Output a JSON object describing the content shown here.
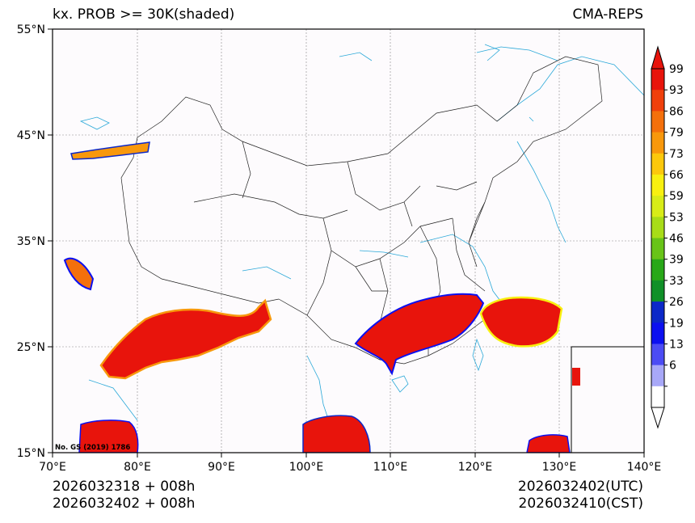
{
  "header": {
    "title": "kx. PROB >= 30K(shaded)",
    "model": "CMA-REPS"
  },
  "footer": {
    "init_utc": "2026032318  +  008h",
    "init_cst": "2026032402  +  008h",
    "valid_utc": "2026032402(UTC)",
    "valid_cst": "2026032410(CST)"
  },
  "map": {
    "lat_labels": [
      "55°N",
      "45°N",
      "35°N",
      "25°N",
      "15°N"
    ],
    "lon_labels": [
      "70°E",
      "80°E",
      "90°E",
      "100°E",
      "110°E",
      "120°E",
      "130°E",
      "140°E"
    ],
    "attribution": "No. GS (2019) 1786"
  },
  "colorbar": {
    "labels": [
      "99",
      "93",
      "86",
      "79",
      "73",
      "66",
      "59",
      "53",
      "46",
      "39",
      "33",
      "26",
      "19",
      "13",
      "6"
    ],
    "colors": [
      "#e8140c",
      "#f0400c",
      "#f4700c",
      "#f8980c",
      "#fcc80c",
      "#f8f010",
      "#d8ec18",
      "#a8dc18",
      "#68c418",
      "#28a818",
      "#109028",
      "#0c28c8",
      "#0c10f0",
      "#4c4cf4",
      "#a8a8f8",
      "#ffffff"
    ]
  }
}
